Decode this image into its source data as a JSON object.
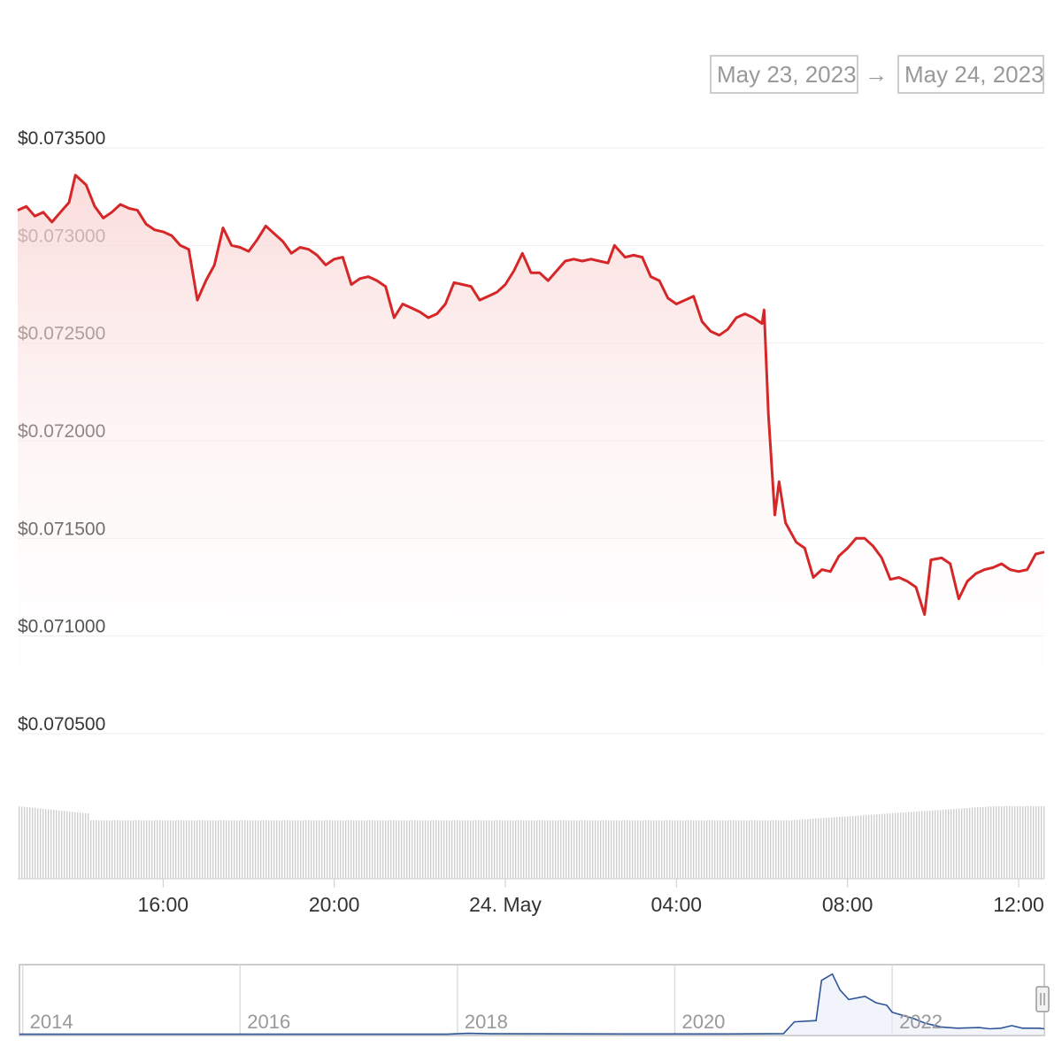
{
  "range_selector": {
    "from": "May 23, 2023",
    "arrow": "→",
    "to": "May 24, 2023"
  },
  "colors": {
    "line": "#d62728",
    "area_top": "#f9d6d5",
    "grid": "#eeeeee",
    "volume": "#cfcfcf",
    "navigator_line": "#2e5597"
  },
  "chart_data": {
    "type": "line",
    "title": "",
    "xlabel": "",
    "ylabel": "",
    "y_ticks": [
      "$0.073500",
      "$0.073000",
      "$0.072500",
      "$0.072000",
      "$0.071500",
      "$0.071000",
      "$0.070500"
    ],
    "y_tick_values": [
      0.0735,
      0.073,
      0.0725,
      0.072,
      0.0715,
      0.071,
      0.0705
    ],
    "ylim": [
      0.0705,
      0.0735
    ],
    "xlim": [
      12.6,
      36.6
    ],
    "x_unit": "hours since May 23, 2023 00:00",
    "x_ticks": [
      {
        "label": "16:00",
        "x": 16
      },
      {
        "label": "20:00",
        "x": 20
      },
      {
        "label": "24. May",
        "x": 24
      },
      {
        "label": "04:00",
        "x": 28
      },
      {
        "label": "08:00",
        "x": 32
      },
      {
        "label": "12:00",
        "x": 36
      }
    ],
    "grid": true,
    "legend": "none",
    "series": [
      {
        "points": [
          [
            12.6,
            0.07318
          ],
          [
            12.8,
            0.0732
          ],
          [
            13.0,
            0.07315
          ],
          [
            13.2,
            0.07317
          ],
          [
            13.4,
            0.07312
          ],
          [
            13.6,
            0.07317
          ],
          [
            13.8,
            0.07322
          ],
          [
            13.95,
            0.07336
          ],
          [
            14.2,
            0.07331
          ],
          [
            14.4,
            0.0732
          ],
          [
            14.6,
            0.07314
          ],
          [
            14.8,
            0.07317
          ],
          [
            15.0,
            0.07321
          ],
          [
            15.2,
            0.07319
          ],
          [
            15.4,
            0.07318
          ],
          [
            15.6,
            0.07311
          ],
          [
            15.8,
            0.07308
          ],
          [
            16.0,
            0.07307
          ],
          [
            16.2,
            0.07305
          ],
          [
            16.4,
            0.073
          ],
          [
            16.6,
            0.07298
          ],
          [
            16.8,
            0.07272
          ],
          [
            17.0,
            0.07282
          ],
          [
            17.2,
            0.0729
          ],
          [
            17.4,
            0.07309
          ],
          [
            17.6,
            0.073
          ],
          [
            17.8,
            0.07299
          ],
          [
            18.0,
            0.07297
          ],
          [
            18.2,
            0.07303
          ],
          [
            18.4,
            0.0731
          ],
          [
            18.6,
            0.07306
          ],
          [
            18.8,
            0.07302
          ],
          [
            19.0,
            0.07296
          ],
          [
            19.2,
            0.07299
          ],
          [
            19.4,
            0.07298
          ],
          [
            19.6,
            0.07295
          ],
          [
            19.8,
            0.0729
          ],
          [
            20.0,
            0.07293
          ],
          [
            20.2,
            0.07294
          ],
          [
            20.4,
            0.0728
          ],
          [
            20.6,
            0.07283
          ],
          [
            20.8,
            0.07284
          ],
          [
            21.0,
            0.07282
          ],
          [
            21.2,
            0.07279
          ],
          [
            21.4,
            0.07263
          ],
          [
            21.6,
            0.0727
          ],
          [
            21.8,
            0.07268
          ],
          [
            22.0,
            0.07266
          ],
          [
            22.2,
            0.07263
          ],
          [
            22.4,
            0.07265
          ],
          [
            22.6,
            0.0727
          ],
          [
            22.8,
            0.07281
          ],
          [
            23.0,
            0.0728
          ],
          [
            23.2,
            0.07279
          ],
          [
            23.4,
            0.07272
          ],
          [
            23.6,
            0.07274
          ],
          [
            23.8,
            0.07276
          ],
          [
            24.0,
            0.0728
          ],
          [
            24.2,
            0.07287
          ],
          [
            24.4,
            0.07296
          ],
          [
            24.6,
            0.07286
          ],
          [
            24.8,
            0.07286
          ],
          [
            25.0,
            0.07282
          ],
          [
            25.2,
            0.07287
          ],
          [
            25.4,
            0.07292
          ],
          [
            25.6,
            0.07293
          ],
          [
            25.8,
            0.07292
          ],
          [
            26.0,
            0.07293
          ],
          [
            26.2,
            0.07292
          ],
          [
            26.4,
            0.07291
          ],
          [
            26.55,
            0.073
          ],
          [
            26.8,
            0.07294
          ],
          [
            27.0,
            0.07295
          ],
          [
            27.2,
            0.07294
          ],
          [
            27.4,
            0.07284
          ],
          [
            27.6,
            0.07282
          ],
          [
            27.8,
            0.07273
          ],
          [
            28.0,
            0.0727
          ],
          [
            28.2,
            0.07272
          ],
          [
            28.4,
            0.07274
          ],
          [
            28.6,
            0.07261
          ],
          [
            28.8,
            0.07256
          ],
          [
            29.0,
            0.07254
          ],
          [
            29.2,
            0.07257
          ],
          [
            29.4,
            0.07263
          ],
          [
            29.6,
            0.07265
          ],
          [
            29.8,
            0.07263
          ],
          [
            30.0,
            0.0726
          ],
          [
            30.05,
            0.07267
          ],
          [
            30.15,
            0.07214
          ],
          [
            30.3,
            0.07162
          ],
          [
            30.4,
            0.07179
          ],
          [
            30.55,
            0.07158
          ],
          [
            30.8,
            0.07148
          ],
          [
            31.0,
            0.07145
          ],
          [
            31.2,
            0.0713
          ],
          [
            31.4,
            0.07134
          ],
          [
            31.6,
            0.07133
          ],
          [
            31.8,
            0.07141
          ],
          [
            32.0,
            0.07145
          ],
          [
            32.2,
            0.0715
          ],
          [
            32.4,
            0.0715
          ],
          [
            32.6,
            0.07146
          ],
          [
            32.8,
            0.0714
          ],
          [
            33.0,
            0.07129
          ],
          [
            33.2,
            0.0713
          ],
          [
            33.4,
            0.07128
          ],
          [
            33.6,
            0.07125
          ],
          [
            33.8,
            0.07111
          ],
          [
            33.95,
            0.07139
          ],
          [
            34.2,
            0.0714
          ],
          [
            34.4,
            0.07137
          ],
          [
            34.6,
            0.07119
          ],
          [
            34.8,
            0.07128
          ],
          [
            35.0,
            0.07132
          ],
          [
            35.2,
            0.07134
          ],
          [
            35.4,
            0.07135
          ],
          [
            35.6,
            0.07137
          ],
          [
            35.8,
            0.07134
          ],
          [
            36.0,
            0.07133
          ],
          [
            36.2,
            0.07134
          ],
          [
            36.4,
            0.07142
          ],
          [
            36.6,
            0.07143
          ]
        ]
      }
    ]
  },
  "navigator": {
    "x_ticks": [
      {
        "label": "2014",
        "x": 2014
      },
      {
        "label": "2016",
        "x": 2016
      },
      {
        "label": "2018",
        "x": 2018
      },
      {
        "label": "2020",
        "x": 2020
      },
      {
        "label": "2022",
        "x": 2022
      }
    ],
    "xlim": [
      2013.97,
      2023.4
    ],
    "points": [
      [
        2013.97,
        0.005
      ],
      [
        2017.9,
        0.006
      ],
      [
        2018.1,
        0.02
      ],
      [
        2018.3,
        0.012
      ],
      [
        2019.5,
        0.01
      ],
      [
        2020.5,
        0.01
      ],
      [
        2021.0,
        0.015
      ],
      [
        2021.1,
        0.2
      ],
      [
        2021.3,
        0.22
      ],
      [
        2021.35,
        0.85
      ],
      [
        2021.45,
        0.95
      ],
      [
        2021.52,
        0.7
      ],
      [
        2021.6,
        0.55
      ],
      [
        2021.75,
        0.6
      ],
      [
        2021.85,
        0.5
      ],
      [
        2021.95,
        0.46
      ],
      [
        2022.0,
        0.35
      ],
      [
        2022.1,
        0.3
      ],
      [
        2022.2,
        0.25
      ],
      [
        2022.3,
        0.18
      ],
      [
        2022.45,
        0.12
      ],
      [
        2022.6,
        0.1
      ],
      [
        2022.8,
        0.11
      ],
      [
        2022.9,
        0.09
      ],
      [
        2023.0,
        0.1
      ],
      [
        2023.1,
        0.14
      ],
      [
        2023.2,
        0.1
      ],
      [
        2023.35,
        0.1
      ],
      [
        2023.4,
        0.09
      ]
    ]
  }
}
